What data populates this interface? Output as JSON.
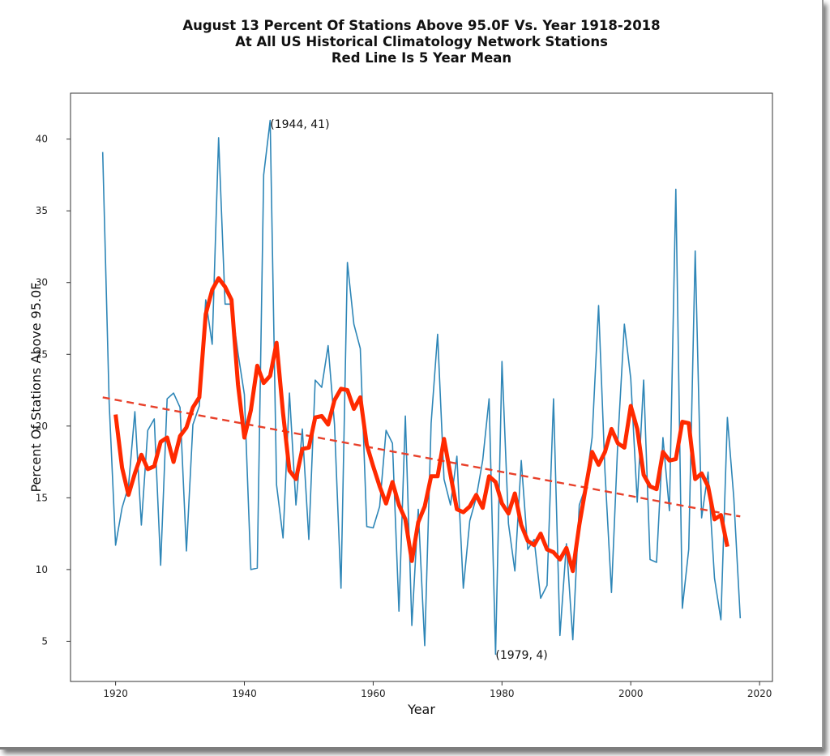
{
  "chart_data": {
    "type": "line",
    "title": [
      "August 13 Percent Of Stations Above 95.0F Vs. Year 1918-2018",
      "At All US Historical Climatology Network Stations",
      "Red Line Is 5 Year Mean"
    ],
    "xlabel": "Year",
    "ylabel": "Percent Of Stations Above 95.0F",
    "xlim": [
      1913,
      2022
    ],
    "ylim": [
      2.2,
      43.2
    ],
    "xticks": [
      1920,
      1940,
      1960,
      1980,
      2000,
      2020
    ],
    "yticks": [
      5,
      10,
      15,
      20,
      25,
      30,
      35,
      40
    ],
    "grid": false,
    "colors": {
      "data": "#2e86b7",
      "mean": "#ff2a00",
      "trend": "#e8402a"
    },
    "series": [
      {
        "name": "Percent of stations",
        "x_start": 1918,
        "values": [
          39.1,
          21.6,
          11.7,
          14.3,
          15.8,
          21.0,
          13.1,
          19.7,
          20.5,
          10.3,
          21.9,
          22.3,
          21.3,
          11.3,
          20.1,
          21.4,
          28.8,
          25.7,
          40.1,
          28.5,
          28.5,
          25.1,
          22.2,
          10.0,
          10.1,
          37.5,
          41.3,
          15.9,
          12.2,
          22.3,
          14.5,
          19.8,
          12.1,
          23.2,
          22.7,
          25.6,
          20.1,
          8.7,
          31.4,
          27.1,
          25.4,
          13.0,
          12.9,
          14.4,
          19.7,
          18.8,
          7.1,
          20.7,
          6.1,
          14.2,
          4.7,
          20.2,
          26.4,
          16.3,
          14.5,
          17.9,
          8.7,
          13.4,
          15.0,
          17.6,
          21.9,
          4.1,
          24.5,
          13.2,
          9.9,
          17.6,
          11.4,
          12.1,
          8.0,
          8.9,
          21.9,
          5.4,
          11.8,
          5.1,
          14.5,
          15.8,
          19.2,
          28.4,
          16.8,
          8.4,
          19.0,
          27.1,
          23.3,
          14.7,
          23.2,
          10.7,
          10.5,
          19.2,
          14.1,
          36.5,
          7.3,
          11.4,
          32.2,
          13.6,
          16.8,
          9.4,
          6.5,
          20.6,
          15.0,
          6.6
        ]
      },
      {
        "name": "5 Year Mean",
        "x_start": 1920,
        "values": [
          20.8,
          17.1,
          15.2,
          16.7,
          18.0,
          17.0,
          17.2,
          18.9,
          19.2,
          17.5,
          19.3,
          19.9,
          21.3,
          22.0,
          27.8,
          29.5,
          30.3,
          29.7,
          28.8,
          22.9,
          19.2,
          21.1,
          24.2,
          23.0,
          23.5,
          25.8,
          20.9,
          16.9,
          16.3,
          18.4,
          18.5,
          20.6,
          20.7,
          20.1,
          21.8,
          22.6,
          22.5,
          21.2,
          22.0,
          18.7,
          17.2,
          15.8,
          14.6,
          16.1,
          14.5,
          13.5,
          10.6,
          13.3,
          14.4,
          16.5,
          16.5,
          19.1,
          16.6,
          14.2,
          14.0,
          14.4,
          15.2,
          14.3,
          16.5,
          16.1,
          14.6,
          13.9,
          15.3,
          13.1,
          12.0,
          11.7,
          12.5,
          11.4,
          11.2,
          10.7,
          11.5,
          9.9,
          13.1,
          15.7,
          18.2,
          17.3,
          18.2,
          19.8,
          18.8,
          18.5,
          21.4,
          19.8,
          16.6,
          15.8,
          15.6,
          18.2,
          17.6,
          17.7,
          20.3,
          20.2,
          16.3,
          16.7,
          15.8,
          13.5,
          13.8,
          11.6
        ]
      },
      {
        "name": "Linear trend",
        "x": [
          1918,
          2017
        ],
        "values": [
          22.0,
          13.7
        ]
      }
    ],
    "annotations": [
      {
        "text": "(1944, 41)",
        "x": 1944,
        "y": 41
      },
      {
        "text": "(1979, 4)",
        "x": 1979,
        "y": 4
      }
    ]
  }
}
